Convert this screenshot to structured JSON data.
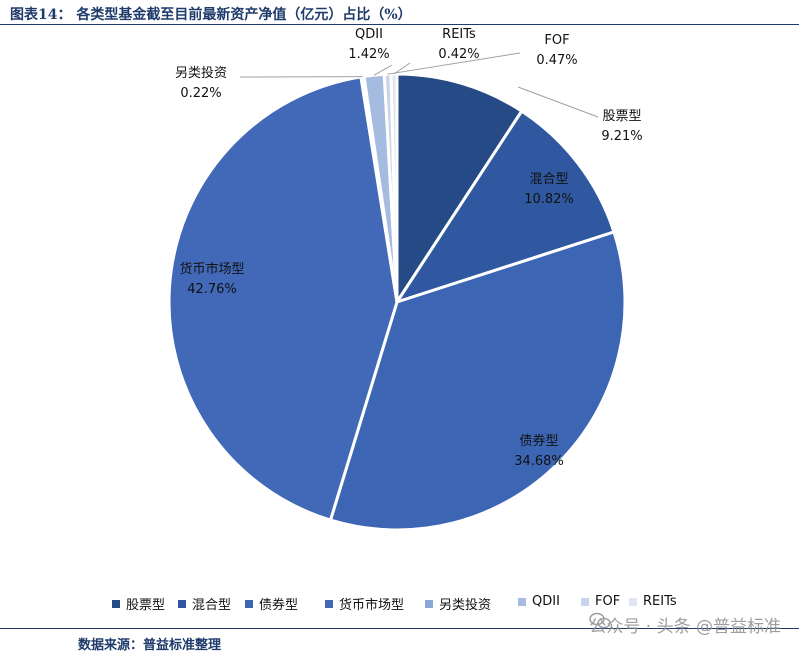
{
  "title": "图表14：  各类型基金截至目前最新资产净值（亿元）占比（%）",
  "source": "数据来源：普益标准整理",
  "watermark": "公众号 · 头条 @普益标准",
  "colors": {
    "title": "#1f3b6b",
    "slices": [
      "#264a86",
      "#2f58a0",
      "#3c66b3",
      "#4169b8",
      "#8aa6d4",
      "#a5bbdf",
      "#c9d4ea",
      "#dfe5f2"
    ]
  },
  "chart_data": {
    "type": "pie",
    "title": "各类型基金截至目前最新资产净值（亿元）占比（%）",
    "categories": [
      "股票型",
      "混合型",
      "债券型",
      "货币市场型",
      "另类投资",
      "QDII",
      "FOF",
      "REITs"
    ],
    "values": [
      9.21,
      10.82,
      34.68,
      42.76,
      0.22,
      1.42,
      0.47,
      0.42
    ],
    "value_labels": [
      "9.21%",
      "10.82%",
      "34.68%",
      "42.76%",
      "0.22%",
      "1.42%",
      "0.47%",
      "0.42%"
    ],
    "start_angle": "12 o'clock",
    "direction": "clockwise",
    "legend_position": "bottom"
  }
}
